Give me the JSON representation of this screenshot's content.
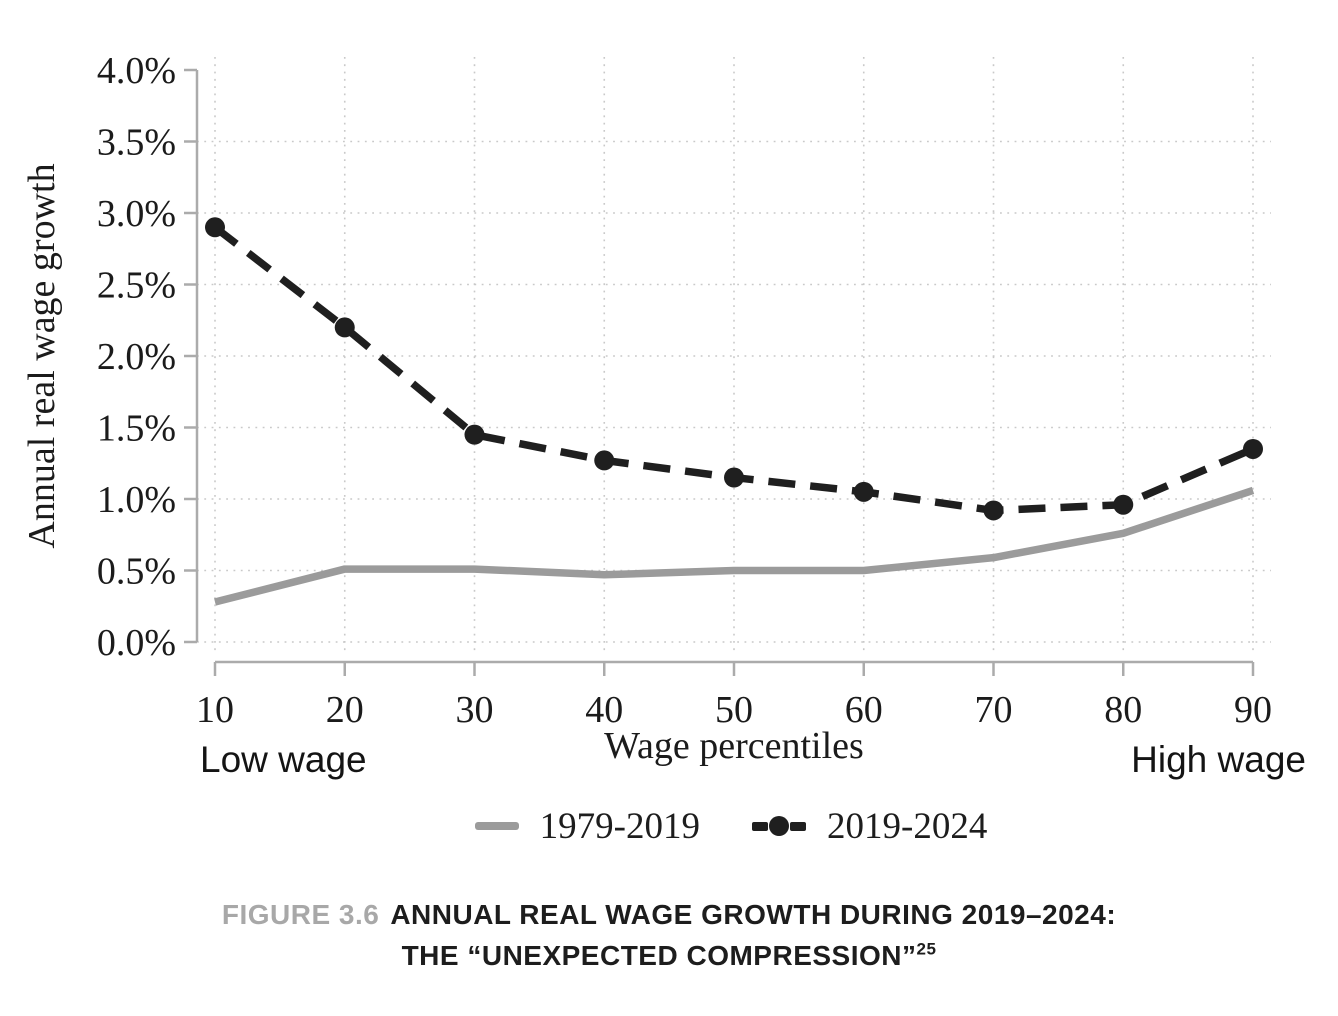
{
  "chart_data": {
    "type": "line",
    "xlabel": "Wage percentiles",
    "ylabel": "Annual real wage growth",
    "left_annotation": "Low wage",
    "right_annotation": "High wage",
    "x": [
      10,
      20,
      30,
      40,
      50,
      60,
      70,
      80,
      90
    ],
    "x_tick_labels": [
      "10",
      "20",
      "30",
      "40",
      "50",
      "60",
      "70",
      "80",
      "90"
    ],
    "xlim": [
      10,
      90
    ],
    "ylim": [
      0,
      4
    ],
    "grid": true,
    "legend_position": "bottom",
    "y_ticks": [
      {
        "label": "0.0%",
        "value": 0.0,
        "grid": true
      },
      {
        "label": "0.5%",
        "value": 0.5,
        "grid": true
      },
      {
        "label": "1.0%",
        "value": 1.0,
        "grid": true
      },
      {
        "label": "1.5%",
        "value": 1.5,
        "grid": true
      },
      {
        "label": "2.0%",
        "value": 2.0,
        "grid": true
      },
      {
        "label": "2.5%",
        "value": 2.5,
        "grid": true
      },
      {
        "label": "3.0%",
        "value": 3.0,
        "grid": true
      },
      {
        "label": "3.5%",
        "value": 3.5,
        "grid": true
      },
      {
        "label": "4.0%",
        "value": 4.0,
        "grid": false
      }
    ],
    "series": [
      {
        "name": "1979-2019",
        "style": "solid",
        "marker": "none",
        "color": "#9b9b9b",
        "values": [
          0.28,
          0.51,
          0.51,
          0.47,
          0.5,
          0.5,
          0.59,
          0.76,
          1.06
        ]
      },
      {
        "name": "2019-2024",
        "style": "dashed",
        "marker": "circle",
        "color": "#1f1f1f",
        "values": [
          2.9,
          2.2,
          1.45,
          1.27,
          1.15,
          1.05,
          0.92,
          0.96,
          1.35
        ]
      }
    ]
  },
  "figure": {
    "caption": {
      "figure_label": "FIGURE 3.6",
      "title_line1": "ANNUAL REAL WAGE GROWTH DURING 2019–2024:",
      "title_line2": "THE “UNEXPECTED COMPRESSION”",
      "footnote_ref": "25",
      "label_color": "#a8a8a8",
      "title_color": "#1d1d1d"
    }
  }
}
